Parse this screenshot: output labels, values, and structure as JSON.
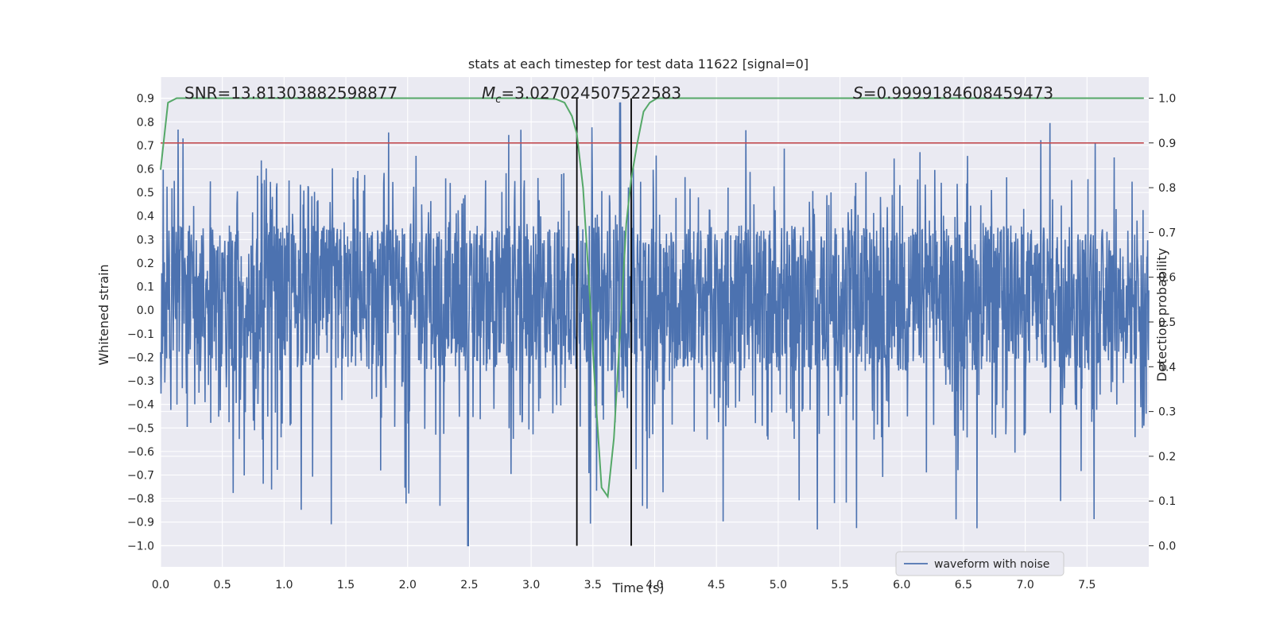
{
  "chart_data": {
    "type": "line",
    "title": "stats at each timestep for test data 11622 [signal=0]",
    "xlabel": "Time (s)",
    "ylabel_left": "Whitened strain",
    "ylabel_right": "Detection probability",
    "xlim": [
      0.0,
      8.0
    ],
    "ylim_left": [
      -1.09,
      0.99
    ],
    "ylim_right": [
      -0.047,
      1.047
    ],
    "x_ticks": [
      0.0,
      0.5,
      1.0,
      1.5,
      2.0,
      2.5,
      3.0,
      3.5,
      4.0,
      4.5,
      5.0,
      5.5,
      6.0,
      6.5,
      7.0,
      7.5
    ],
    "x_tick_labels": [
      "0.0",
      "0.5",
      "1.0",
      "1.5",
      "2.0",
      "2.5",
      "3.0",
      "3.5",
      "4.0",
      "4.5",
      "5.0",
      "5.5",
      "6.0",
      "6.5",
      "7.0",
      "7.5"
    ],
    "y_left_ticks": [
      0.9,
      0.8,
      0.7,
      0.6,
      0.5,
      0.4,
      0.3,
      0.2,
      0.1,
      0.0,
      -0.1,
      -0.2,
      -0.3,
      -0.4,
      -0.5,
      -0.6,
      -0.7,
      -0.8,
      -0.9,
      -1.0
    ],
    "y_left_tick_labels": [
      "0.9",
      "0.8",
      "0.7",
      "0.6",
      "0.5",
      "0.4",
      "0.3",
      "0.2",
      "0.1",
      "0.0",
      "−0.1",
      "−0.2",
      "−0.3",
      "−0.4",
      "−0.5",
      "−0.6",
      "−0.7",
      "−0.8",
      "−0.9",
      "−1.0"
    ],
    "y_right_ticks": [
      1.0,
      0.9,
      0.8,
      0.7,
      0.6,
      0.5,
      0.4,
      0.3,
      0.2,
      0.1,
      0.0
    ],
    "y_right_tick_labels": [
      "1.0",
      "0.9",
      "0.8",
      "0.7",
      "0.6",
      "0.5",
      "0.4",
      "0.3",
      "0.2",
      "0.1",
      "0.0"
    ],
    "grid": true,
    "legend": {
      "placement": "lower-right",
      "entries": [
        "waveform with noise"
      ]
    },
    "annotations": {
      "snr": "SNR=13.81303882598877",
      "mc_symbol": "M",
      "mc_subscript": "c",
      "mc_value": "=3.027024507522583",
      "s_symbol": "S",
      "s_value": "=0.9999184608459473"
    },
    "threshold_right": 0.9,
    "vertical_lines_x": [
      3.37,
      3.81
    ],
    "waveform": {
      "name": "waveform with noise",
      "x_range": [
        0.0,
        8.0
      ],
      "envelope_typical": [
        -0.4,
        0.5
      ],
      "extremes": [
        -1.0,
        0.88
      ]
    },
    "series": [
      {
        "name": "Detection probability",
        "x": [
          0.0,
          0.06,
          0.13,
          0.5,
          1.0,
          2.0,
          3.0,
          3.2,
          3.27,
          3.33,
          3.37,
          3.42,
          3.47,
          3.52,
          3.57,
          3.62,
          3.67,
          3.72,
          3.77,
          3.81,
          3.86,
          3.91,
          3.96,
          4.02,
          4.1,
          4.5,
          5.0,
          6.0,
          7.0,
          7.96
        ],
        "y": [
          0.84,
          0.99,
          1.0,
          1.0,
          1.0,
          1.0,
          1.0,
          0.998,
          0.99,
          0.96,
          0.92,
          0.8,
          0.58,
          0.34,
          0.13,
          0.11,
          0.24,
          0.48,
          0.72,
          0.82,
          0.9,
          0.97,
          0.99,
          1.0,
          1.0,
          1.0,
          1.0,
          1.0,
          1.0,
          1.0
        ]
      }
    ]
  },
  "colors": {
    "waveform": "#4c72b0",
    "probability": "#55a868",
    "threshold": "#c44e52",
    "vlines": "#000000",
    "plot_bg": "#eaeaf2",
    "grid": "#ffffff"
  }
}
